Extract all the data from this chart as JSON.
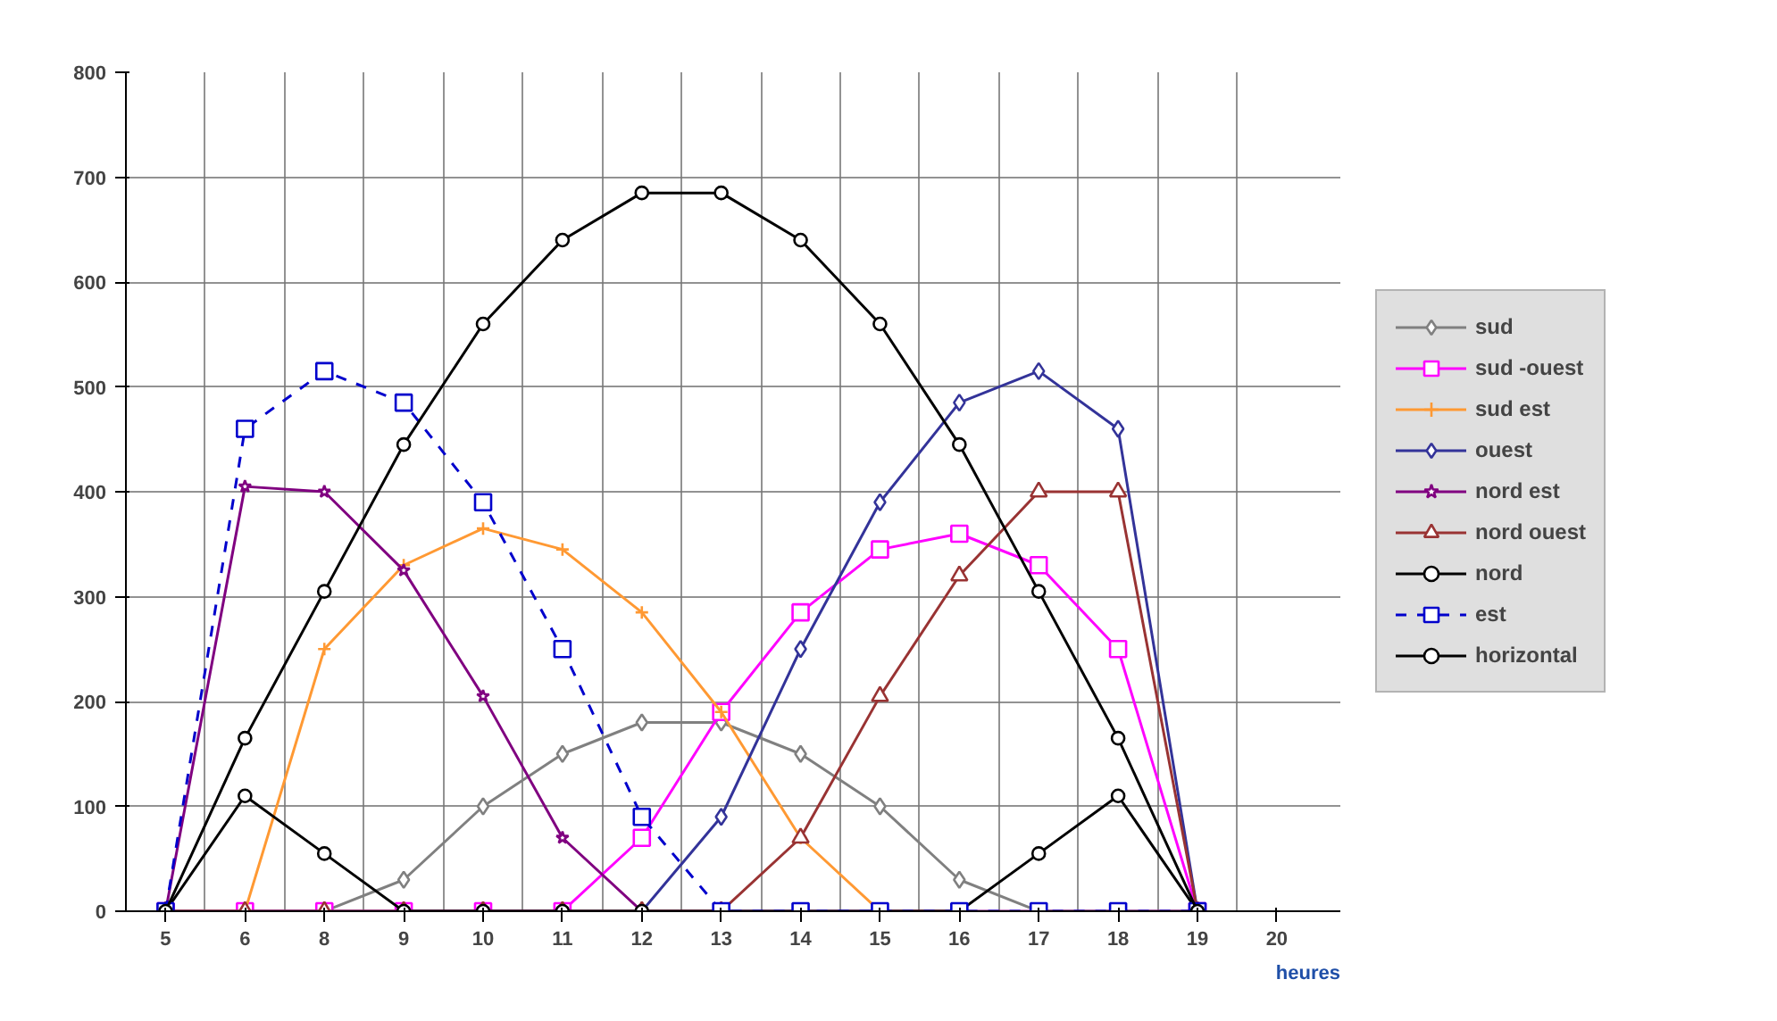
{
  "chart_data": {
    "type": "line",
    "xlabel": "heures",
    "categories": [
      "5",
      "6",
      "8",
      "9",
      "10",
      "11",
      "12",
      "13",
      "14",
      "15",
      "16",
      "17",
      "18",
      "19",
      "20"
    ],
    "ylim": [
      0,
      800
    ],
    "yticks": [
      0,
      100,
      200,
      300,
      400,
      500,
      600,
      700,
      800
    ],
    "grid": true,
    "legend": "right",
    "series": [
      {
        "name": "sud",
        "color": "#808080",
        "marker": "diamond",
        "values": [
          0,
          0,
          0,
          30,
          100,
          150,
          180,
          180,
          150,
          100,
          30,
          0,
          0,
          0,
          null
        ]
      },
      {
        "name": "sud -ouest",
        "color": "#ff00ff",
        "marker": "square",
        "values": [
          0,
          0,
          0,
          0,
          0,
          0,
          70,
          190,
          285,
          345,
          360,
          330,
          250,
          0,
          null
        ]
      },
      {
        "name": "sud est",
        "color": "#ff9933",
        "marker": "cross",
        "values": [
          0,
          0,
          250,
          330,
          365,
          345,
          285,
          190,
          70,
          0,
          0,
          null,
          null,
          null,
          null
        ]
      },
      {
        "name": "ouest",
        "color": "#333399",
        "marker": "diamond",
        "values": [
          0,
          0,
          0,
          0,
          0,
          0,
          0,
          90,
          250,
          390,
          485,
          515,
          460,
          0,
          null
        ]
      },
      {
        "name": "nord est",
        "color": "#800080",
        "marker": "star",
        "values": [
          0,
          405,
          400,
          325,
          205,
          70,
          0,
          0,
          0,
          0,
          0,
          0,
          0,
          0,
          null
        ]
      },
      {
        "name": "nord ouest",
        "color": "#993333",
        "marker": "triangle",
        "values": [
          0,
          0,
          0,
          0,
          0,
          0,
          0,
          0,
          70,
          205,
          320,
          400,
          400,
          0,
          null
        ]
      },
      {
        "name": "nord",
        "color": "#000000",
        "marker": "circle",
        "values": [
          0,
          110,
          55,
          0,
          0,
          0,
          0,
          0,
          0,
          0,
          0,
          55,
          110,
          0,
          null
        ]
      },
      {
        "name": "est",
        "color": "#0000cc",
        "marker": "square",
        "line_style": "dashed",
        "values": [
          0,
          460,
          515,
          485,
          390,
          250,
          90,
          0,
          0,
          0,
          0,
          0,
          0,
          0,
          null
        ]
      },
      {
        "name": "horizontal",
        "color": "#000000",
        "marker": "circle",
        "values": [
          0,
          165,
          305,
          445,
          560,
          640,
          685,
          685,
          640,
          560,
          445,
          305,
          165,
          0,
          null
        ]
      }
    ]
  }
}
